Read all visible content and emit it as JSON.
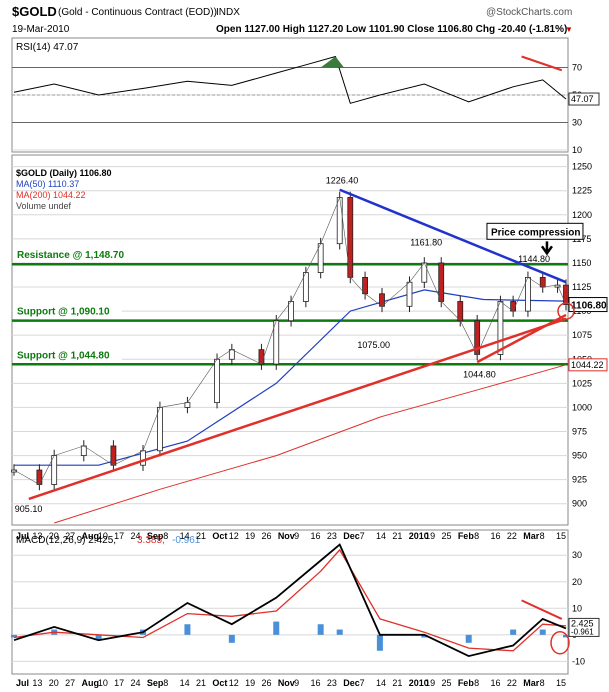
{
  "header": {
    "symbol": "$GOLD",
    "description": "(Gold - Continuous Contract (EOD))",
    "exchange": "INDX",
    "brand": "@StockCharts.com",
    "date": "19-Mar-2010",
    "ohlc_text": "Open 1127.00  High 1127.20  Low 1101.90  Close 1106.80  Chg -20.40 (-1.81%)"
  },
  "colors": {
    "price_line": "#000000",
    "ma50": "#1f3fbf",
    "ma200": "#e0302a",
    "trend_red": "#e0302a",
    "trend_blue": "#2233cc",
    "level_green": "#0d7a0d",
    "rsi_fill": "#3a7a3a",
    "macd_hist": "#4a90d9",
    "grid": "#d8d8d8"
  },
  "chart_data": [
    {
      "type": "line",
      "panel": "rsi",
      "legend": "RSI(14) 47.07",
      "last_value_label": "47.07",
      "ylim": [
        10,
        90
      ],
      "y_ticks": [
        "70",
        "50",
        "30",
        "10"
      ],
      "ref_lines": [
        70,
        30
      ],
      "x": [
        "2009-07-01",
        "2009-07-20",
        "2009-08-10",
        "2009-09-01",
        "2009-09-21",
        "2009-10-12",
        "2009-11-02",
        "2009-11-16",
        "2009-11-30",
        "2009-12-07",
        "2009-12-21",
        "2010-01-11",
        "2010-02-01",
        "2010-02-22",
        "2010-03-08",
        "2010-03-19"
      ],
      "values": [
        52,
        58,
        50,
        55,
        60,
        57,
        66,
        72,
        78,
        44,
        50,
        58,
        45,
        56,
        61,
        47.07
      ]
    },
    {
      "type": "candlestick",
      "panel": "price",
      "legend": [
        "$GOLD (Daily) 1106.80",
        "MA(50) 1110.37",
        "MA(200) 1044.22",
        "Volume undef"
      ],
      "ylim": [
        880,
        1260
      ],
      "y_ticks": [
        "1250",
        "1225",
        "1200",
        "1175",
        "1150",
        "1125",
        "1100",
        "1075",
        "1050",
        "1025",
        "1000",
        "975",
        "950",
        "925",
        "900"
      ],
      "series": [
        {
          "name": "$GOLD (Daily)",
          "x": [
            "2009-07-01",
            "2009-07-13",
            "2009-07-20",
            "2009-08-03",
            "2009-08-17",
            "2009-08-31",
            "2009-09-08",
            "2009-09-21",
            "2009-10-05",
            "2009-10-12",
            "2009-10-26",
            "2009-11-02",
            "2009-11-09",
            "2009-11-16",
            "2009-11-23",
            "2009-12-02",
            "2009-12-07",
            "2009-12-14",
            "2009-12-22",
            "2010-01-04",
            "2010-01-11",
            "2010-01-19",
            "2010-01-28",
            "2010-02-05",
            "2010-02-16",
            "2010-02-22",
            "2010-03-01",
            "2010-03-08",
            "2010-03-15",
            "2010-03-19"
          ],
          "values": [
            935,
            920,
            950,
            960,
            940,
            955,
            1000,
            1005,
            1050,
            1060,
            1045,
            1090,
            1110,
            1140,
            1170,
            1218,
            1135,
            1118,
            1105,
            1130,
            1150,
            1110,
            1090,
            1055,
            1110,
            1100,
            1135,
            1125,
            1127,
            1106.8
          ]
        },
        {
          "name": "MA(50)",
          "x": [
            "2009-07-01",
            "2009-08-10",
            "2009-09-21",
            "2009-11-02",
            "2009-12-07",
            "2010-01-11",
            "2010-02-08",
            "2010-03-19"
          ],
          "values": [
            940,
            940,
            965,
            1025,
            1100,
            1122,
            1112,
            1110.37
          ]
        },
        {
          "name": "MA(200)",
          "x": [
            "2009-07-20",
            "2009-09-08",
            "2009-11-02",
            "2009-12-21",
            "2010-02-08",
            "2010-03-19"
          ],
          "values": [
            880,
            915,
            950,
            990,
            1020,
            1044.22
          ]
        }
      ],
      "levels": [
        {
          "label": "Resistance @ 1,148.70",
          "value": 1148.7
        },
        {
          "label": "Support @ 1,090.10",
          "value": 1090.1
        },
        {
          "label": "Support @ 1,044.80",
          "value": 1044.8
        }
      ],
      "annotations": [
        {
          "text": "1226.40",
          "x": "2009-12-02",
          "y": 1226.4
        },
        {
          "text": "1161.80",
          "x": "2010-01-11",
          "y": 1161.8
        },
        {
          "text": "1144.80",
          "x": "2010-03-03",
          "y": 1144.8
        },
        {
          "text": "1075.00",
          "x": "2009-12-17",
          "y": 1075.0
        },
        {
          "text": "1044.80",
          "x": "2010-02-05",
          "y": 1044.8
        },
        {
          "text": "905.10",
          "x": "2009-07-08",
          "y": 905.1
        },
        {
          "text": "Price compression",
          "x": "2010-03-10",
          "y": 1160
        }
      ],
      "trendlines": [
        {
          "color": "red",
          "from": [
            "2009-07-08",
            905
          ],
          "to": [
            "2010-03-19",
            1092
          ]
        },
        {
          "color": "red",
          "from": [
            "2010-02-05",
            1047
          ],
          "to": [
            "2010-03-19",
            1096
          ]
        },
        {
          "color": "blue",
          "from": [
            "2009-12-02",
            1226
          ],
          "to": [
            "2010-03-19",
            1130
          ]
        }
      ],
      "last_price_label": "1106.80",
      "ma200_label": "1044.22"
    },
    {
      "type": "line",
      "panel": "macd",
      "legend": [
        "MACD(12,26,9) 2.425,",
        "3.385,",
        "-0.961"
      ],
      "ylim": [
        -14,
        38
      ],
      "y_ticks": [
        "30",
        "20",
        "10",
        "0",
        "-10"
      ],
      "last_value_labels": [
        "2.425",
        "-0.961"
      ],
      "x": [
        "2009-07-01",
        "2009-07-20",
        "2009-08-10",
        "2009-08-31",
        "2009-09-21",
        "2009-10-12",
        "2009-11-02",
        "2009-11-23",
        "2009-12-02",
        "2009-12-21",
        "2010-01-11",
        "2010-02-01",
        "2010-02-22",
        "2010-03-08",
        "2010-03-19"
      ],
      "series": [
        {
          "name": "MACD",
          "values": [
            -2,
            3,
            -2,
            1,
            12,
            4,
            14,
            28,
            34,
            0,
            0,
            -8,
            -4,
            6,
            2.425
          ]
        },
        {
          "name": "Signal",
          "values": [
            -1,
            1,
            0,
            -1,
            8,
            7,
            9,
            24,
            32,
            6,
            1,
            -5,
            -6,
            4,
            3.385
          ]
        },
        {
          "name": "Histogram",
          "values": [
            -1,
            2,
            -2,
            2,
            4,
            -3,
            5,
            4,
            2,
            -6,
            -1,
            -3,
            2,
            2,
            -0.961
          ]
        }
      ]
    }
  ],
  "x_axis_labels": [
    "Jul",
    "13",
    "20",
    "27",
    "Aug",
    "10",
    "17",
    "24",
    "Sep",
    "8",
    "14",
    "21",
    "Oct",
    "12",
    "19",
    "26",
    "Nov",
    "9",
    "16",
    "23",
    "Dec",
    "7",
    "14",
    "21",
    "2010",
    "19",
    "25",
    "Feb",
    "8",
    "16",
    "22",
    "Mar",
    "8",
    "15"
  ]
}
